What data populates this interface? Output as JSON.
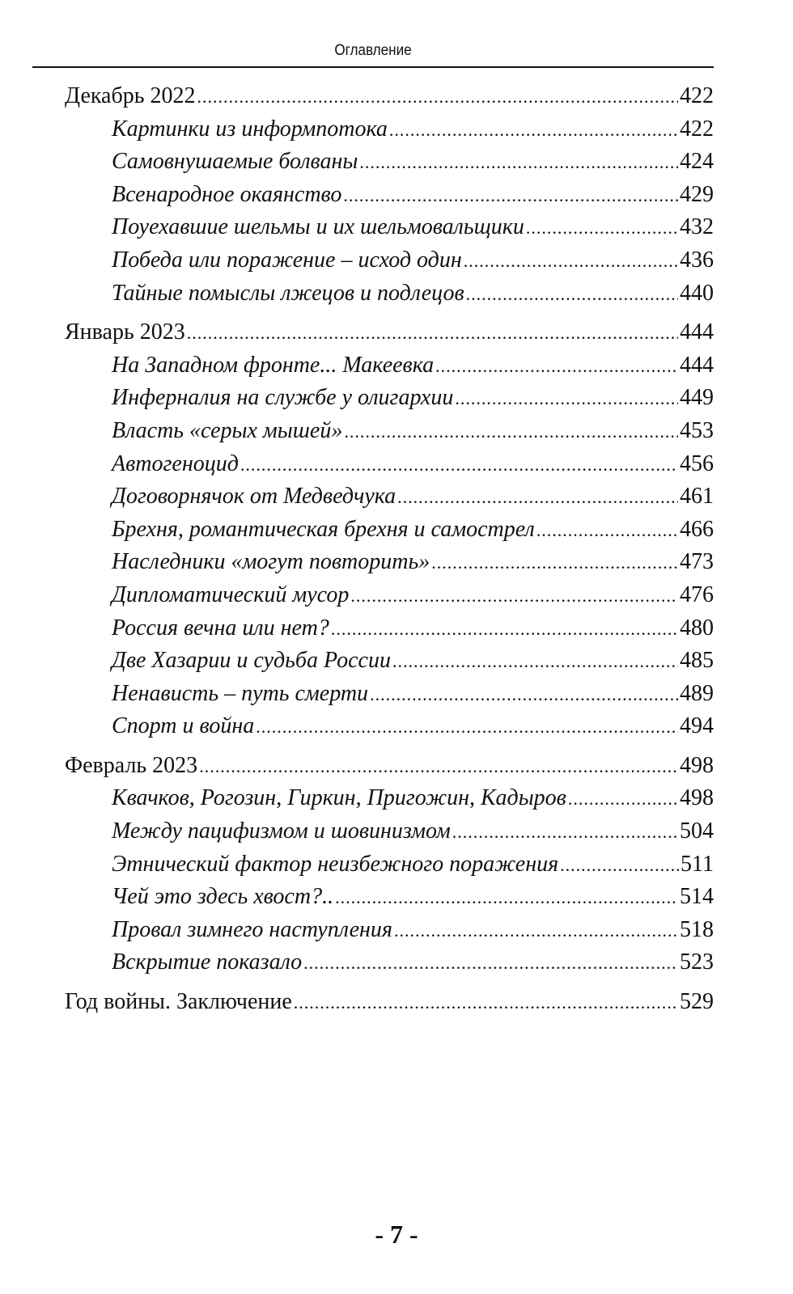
{
  "header": {
    "running_title": "Оглавление"
  },
  "toc": [
    {
      "title": "Декабрь 2022",
      "page": "422",
      "items": [
        {
          "title": "Картинки из информпотока",
          "page": "422"
        },
        {
          "title": "Самовнушаемые болваны",
          "page": "424"
        },
        {
          "title": "Всенародное окаянство",
          "page": "429"
        },
        {
          "title": "Поуехавшие шельмы и их шельмовальщики",
          "page": "432"
        },
        {
          "title": "Победа или поражение – исход один",
          "page": "436"
        },
        {
          "title": "Тайные помыслы лжецов и подлецов",
          "page": "440"
        }
      ]
    },
    {
      "title": "Январь 2023",
      "page": "444",
      "items": [
        {
          "title": "На Западном фронте... Макеевка",
          "page": "444"
        },
        {
          "title": "Инферналия на службе у олигархии",
          "page": "449"
        },
        {
          "title": "Власть «серых мышей»",
          "page": "453"
        },
        {
          "title": "Автогеноцид",
          "page": "456"
        },
        {
          "title": "Договорнячок от Медведчука",
          "page": "461"
        },
        {
          "title": "Брехня, романтическая брехня и самострел",
          "page": "466"
        },
        {
          "title": "Наследники «могут повторить»",
          "page": "473"
        },
        {
          "title": "Дипломатический мусор",
          "page": "476"
        },
        {
          "title": "Россия вечна или нет?",
          "page": "480"
        },
        {
          "title": "Две Хазарии и судьба России",
          "page": "485"
        },
        {
          "title": "Ненависть – путь смерти",
          "page": "489"
        },
        {
          "title": "Спорт и война",
          "page": "494"
        }
      ]
    },
    {
      "title": "Февраль 2023",
      "page": "498",
      "items": [
        {
          "title": "Квачков, Рогозин, Гиркин, Пригожин, Кадыров",
          "page": "498"
        },
        {
          "title": "Между пацифизмом и шовинизмом",
          "page": "504"
        },
        {
          "title": "Этнический фактор неизбежного поражения",
          "page": "511"
        },
        {
          "title": "Чей это здесь хвост?..",
          "page": "514"
        },
        {
          "title": "Провал зимнего наступления",
          "page": "518"
        },
        {
          "title": "Вскрытие показало",
          "page": "523"
        }
      ]
    },
    {
      "title": "Год войны. Заключение",
      "page": "529",
      "items": []
    }
  ],
  "footer": {
    "page_number": "- 7 -"
  }
}
